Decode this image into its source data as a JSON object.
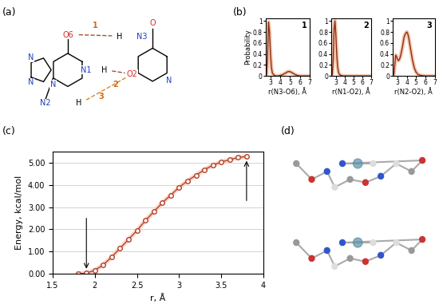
{
  "panel_labels": [
    "(a)",
    "(b)",
    "(c)",
    "(d)"
  ],
  "diagram": {
    "atoms": [
      "O6",
      "N3",
      "H",
      "N1",
      "H",
      "O2",
      "N2",
      "H",
      "O",
      "N",
      "N",
      "N",
      "N"
    ],
    "contacts": [
      "1",
      "2",
      "3"
    ]
  },
  "chart_data": [
    {
      "type": "line",
      "annotation": "1",
      "xlabel": "r(N3-O6), Å",
      "ylabel": "Probability",
      "x": [
        2.5,
        2.6,
        2.7,
        2.8,
        2.9,
        3.0,
        3.1,
        3.2,
        3.4,
        3.6,
        3.8,
        4.0,
        4.2,
        4.4,
        4.6,
        4.8,
        5.0,
        5.2,
        5.4,
        5.6,
        5.8,
        6.0,
        6.5,
        7.0
      ],
      "values": [
        0,
        0.02,
        0.35,
        0.98,
        0.8,
        0.4,
        0.15,
        0.05,
        0.01,
        0,
        0,
        0.01,
        0.02,
        0.04,
        0.06,
        0.08,
        0.08,
        0.06,
        0.04,
        0.02,
        0.01,
        0,
        0,
        0
      ],
      "xlim": [
        2.5,
        7
      ],
      "xticks": [
        3,
        4,
        5,
        6,
        7
      ],
      "ylim": [
        0,
        1.05
      ],
      "yticks": [
        0,
        0.2,
        0.4,
        0.6,
        0.8,
        1
      ],
      "color": "#8b2e16"
    },
    {
      "type": "line",
      "annotation": "2",
      "xlabel": "r(N1-O2), Å",
      "x": [
        2.5,
        2.6,
        2.7,
        2.8,
        2.9,
        3.0,
        3.1,
        3.2,
        3.3,
        3.4,
        3.6,
        3.8,
        4.0,
        5.0,
        6.0,
        7.0
      ],
      "values": [
        0,
        0.03,
        0.3,
        0.85,
        1.0,
        0.75,
        0.4,
        0.17,
        0.07,
        0.03,
        0.01,
        0,
        0,
        0,
        0,
        0
      ],
      "xlim": [
        2.5,
        7
      ],
      "xticks": [
        3,
        4,
        5,
        6,
        7
      ],
      "ylim": [
        0,
        1.05
      ],
      "yticks": [
        0,
        0.2,
        0.4,
        0.6,
        0.8,
        1
      ],
      "color": "#8b2e16"
    },
    {
      "type": "line",
      "annotation": "3",
      "xlabel": "r(N2-O2), Å",
      "x": [
        2.5,
        2.6,
        2.7,
        2.8,
        2.9,
        3.0,
        3.1,
        3.2,
        3.3,
        3.4,
        3.5,
        3.6,
        3.7,
        3.8,
        3.9,
        4.0,
        4.1,
        4.2,
        4.3,
        4.4,
        4.5,
        4.6,
        4.8,
        5.0,
        5.2,
        5.5,
        6.0,
        7.0
      ],
      "values": [
        0,
        0.03,
        0.2,
        0.38,
        0.35,
        0.3,
        0.28,
        0.3,
        0.35,
        0.42,
        0.5,
        0.6,
        0.7,
        0.75,
        0.78,
        0.8,
        0.77,
        0.7,
        0.6,
        0.5,
        0.4,
        0.3,
        0.15,
        0.07,
        0.03,
        0.01,
        0,
        0
      ],
      "xlim": [
        2.5,
        7
      ],
      "xticks": [
        3,
        4,
        5,
        6,
        7
      ],
      "ylim": [
        0,
        1.05
      ],
      "yticks": [
        0,
        0.2,
        0.4,
        0.6,
        0.8,
        1
      ],
      "color": "#8b2e16"
    },
    {
      "type": "line",
      "xlabel": "r, Å",
      "ylabel": "Energy, kcal/mol",
      "marker": "o",
      "grid": "y",
      "color": "#b5402a",
      "x": [
        1.8,
        1.9,
        2.0,
        2.1,
        2.2,
        2.3,
        2.4,
        2.5,
        2.6,
        2.7,
        2.8,
        2.9,
        3.0,
        3.1,
        3.2,
        3.3,
        3.4,
        3.5,
        3.6,
        3.7,
        3.8
      ],
      "values": [
        0,
        0.02,
        0.15,
        0.4,
        0.75,
        1.15,
        1.55,
        1.95,
        2.4,
        2.8,
        3.2,
        3.55,
        3.9,
        4.2,
        4.45,
        4.7,
        4.9,
        5.05,
        5.15,
        5.25,
        5.3
      ],
      "xlim": [
        1.5,
        4
      ],
      "xticks": [
        1.5,
        2,
        2.5,
        3,
        3.5,
        4
      ],
      "ylim": [
        0,
        5.5
      ],
      "yticks": [
        {
          "value": 0,
          "label": "0.00"
        },
        {
          "value": 1,
          "label": "1.00"
        },
        {
          "value": 2,
          "label": "2.00"
        },
        {
          "value": 3,
          "label": "3.00"
        },
        {
          "value": 4,
          "label": "4.00"
        },
        {
          "value": 5,
          "label": "5.00"
        }
      ]
    }
  ]
}
